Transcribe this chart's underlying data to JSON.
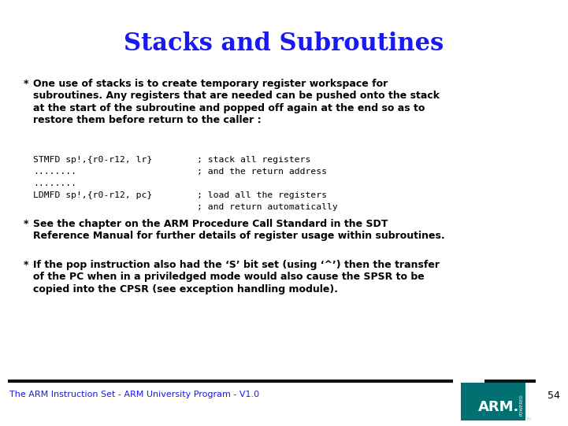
{
  "title": "Stacks and Subroutines",
  "title_color": "#1a1aee",
  "title_fontsize": 22,
  "bg_color": "#ffffff",
  "bullet1_bold": "One use of stacks is to create temporary register workspace for\nsubroutines. Any registers that are needed can be pushed onto the stack\nat the start of the subroutine and popped off again at the end so as to\nrestore them before return to the caller :",
  "code_lines": [
    [
      "STMFD sp!,{r0-r12, lr}",
      "; stack all registers"
    ],
    [
      "........",
      "; and the return address"
    ],
    [
      "........",
      ""
    ],
    [
      "LDMFD sp!,{r0-r12, pc}",
      "; load all the registers"
    ],
    [
      "",
      "; and return automatically"
    ]
  ],
  "bullet2_bold": "See the chapter on the ARM Procedure Call Standard in the SDT\nReference Manual for further details of register usage within subroutines.",
  "bullet3_bold": "If the pop instruction also had the ‘S’ bit set (using ‘^’) then the transfer\nof the PC when in a priviledged mode would also cause the SPSR to be\ncopied into the CPSR (see exception handling module).",
  "footer_text": "The ARM Instruction Set - ARM University Program - V1.0",
  "footer_color": "#1a1aee",
  "footer_page": "54",
  "footer_page_color": "#000000",
  "text_color": "#000000",
  "code_color": "#000000",
  "arm_box_color": "#007070",
  "bullet_fontsize": 9.0,
  "code_fontsize": 8.2,
  "footer_fontsize": 8.0
}
